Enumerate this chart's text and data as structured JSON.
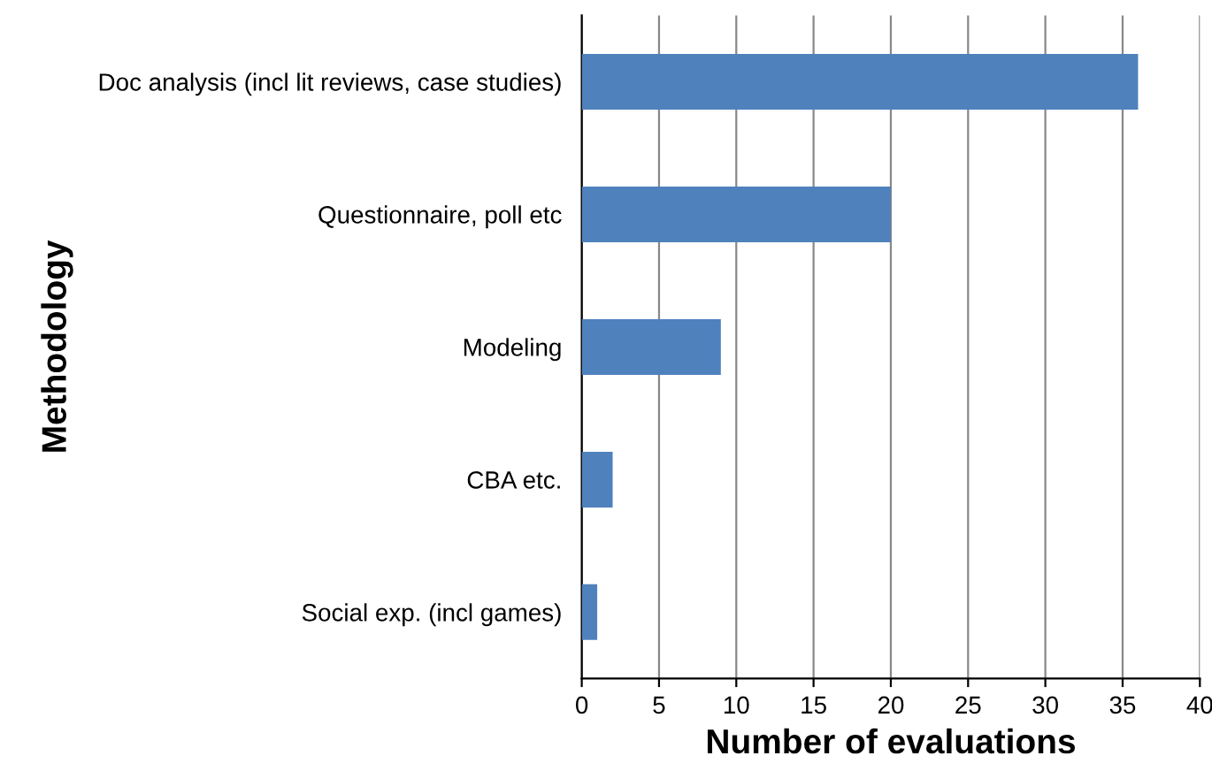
{
  "chart_data": {
    "type": "bar",
    "orientation": "horizontal",
    "categories": [
      "Doc analysis (incl lit reviews, case studies)",
      "Questionnaire, poll etc",
      "Modeling",
      "CBA etc.",
      "Social exp. (incl games)"
    ],
    "values": [
      36,
      20,
      9,
      2,
      1
    ],
    "color": "#4f81bd",
    "xlim": [
      0,
      40
    ],
    "xticks": [
      0,
      5,
      10,
      15,
      20,
      25,
      30,
      35,
      40
    ],
    "xlabel": "Number of evaluations",
    "ylabel": "Methodology",
    "grid": "x",
    "legend": false
  }
}
